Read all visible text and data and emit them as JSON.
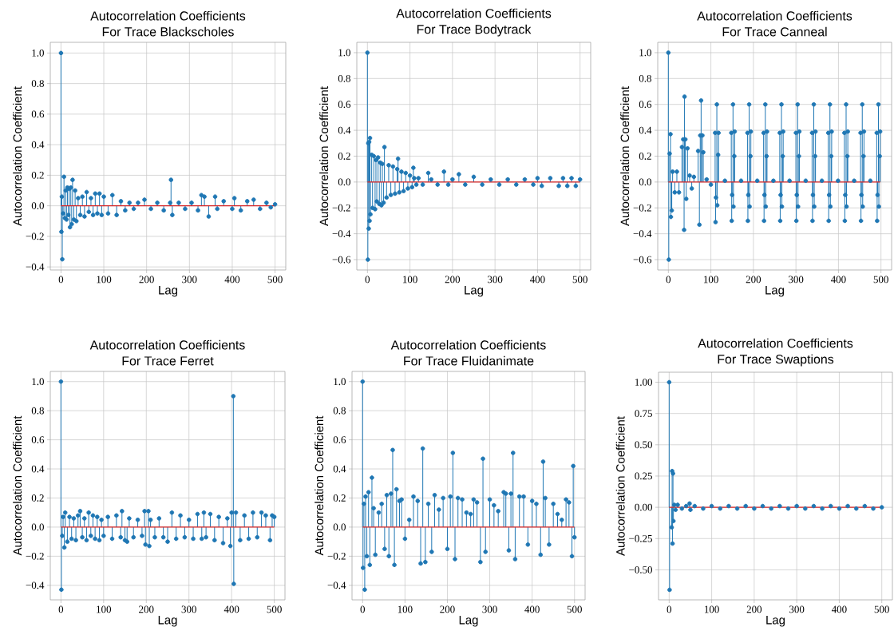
{
  "chart_data": [
    {
      "type": "lollipop",
      "title": "Autocorrelation Coefficients",
      "subtitle": "For Trace Blackscholes",
      "xlabel": "Lag",
      "ylabel": "Autocorrelation Coefficient",
      "color": "#1f77b4",
      "marker": "circle",
      "grid": true,
      "xlim": [
        -25,
        525
      ],
      "ylim": [
        -0.42,
        1.07
      ],
      "xticks": [
        0,
        100,
        200,
        300,
        400,
        500
      ],
      "yticks": [
        {
          "value": -0.4,
          "label": "−0.4"
        },
        {
          "value": -0.2,
          "label": "−0.2"
        },
        {
          "value": 0,
          "label": "0.0"
        },
        {
          "value": 0.2,
          "label": "0.2"
        },
        {
          "value": 0.4,
          "label": "0.4"
        },
        {
          "value": 0.6,
          "label": "0.6"
        },
        {
          "value": 0.8,
          "label": "0.8"
        },
        {
          "value": 1,
          "label": "1.0"
        }
      ],
      "ref_lines": [
        {
          "axis": "y",
          "value": 0,
          "color": "#d62728"
        }
      ],
      "x": [
        0,
        1,
        2,
        3,
        5,
        7,
        9,
        11,
        13,
        15,
        17,
        19,
        21,
        23,
        25,
        27,
        30,
        33,
        36,
        40,
        45,
        50,
        55,
        60,
        65,
        70,
        75,
        80,
        85,
        90,
        95,
        100,
        110,
        120,
        130,
        140,
        150,
        160,
        170,
        180,
        195,
        210,
        225,
        240,
        255,
        257,
        260,
        275,
        290,
        305,
        320,
        328,
        335,
        345,
        360,
        365,
        380,
        400,
        405,
        420,
        435,
        450,
        465,
        480,
        490,
        500
      ],
      "values": [
        1.0,
        -0.17,
        0.06,
        -0.35,
        -0.05,
        0.19,
        -0.08,
        0.1,
        -0.09,
        0.12,
        -0.06,
        0.11,
        -0.14,
        0.12,
        -0.12,
        0.17,
        -0.09,
        0.1,
        -0.1,
        0.05,
        -0.06,
        0.06,
        -0.07,
        0.09,
        -0.04,
        0.05,
        -0.06,
        0.08,
        -0.05,
        0.08,
        -0.06,
        0.06,
        -0.05,
        0.07,
        -0.06,
        0.03,
        -0.03,
        0.02,
        -0.02,
        0.02,
        0.04,
        -0.02,
        0.02,
        -0.03,
        0.02,
        0.17,
        -0.06,
        0.02,
        -0.02,
        0.02,
        -0.03,
        0.07,
        0.06,
        -0.07,
        0.06,
        -0.02,
        0.03,
        -0.02,
        0.05,
        -0.03,
        0.03,
        0.04,
        -0.02,
        0.02,
        -0.01,
        0.01
      ]
    },
    {
      "type": "lollipop",
      "title": "Autocorrelation Coefficients",
      "subtitle": "For Trace Bodytrack",
      "xlabel": "Lag",
      "ylabel": "Autocorrelation Coefficient",
      "color": "#1f77b4",
      "marker": "circle",
      "grid": true,
      "xlim": [
        -25,
        525
      ],
      "ylim": [
        -0.68,
        1.08
      ],
      "xticks": [
        0,
        100,
        200,
        300,
        400,
        500
      ],
      "yticks": [
        {
          "value": -0.6,
          "label": "−0.6"
        },
        {
          "value": -0.4,
          "label": "−0.4"
        },
        {
          "value": -0.2,
          "label": "−0.2"
        },
        {
          "value": 0,
          "label": "0.0"
        },
        {
          "value": 0.2,
          "label": "0.2"
        },
        {
          "value": 0.4,
          "label": "0.4"
        },
        {
          "value": 0.6,
          "label": "0.6"
        },
        {
          "value": 0.8,
          "label": "0.8"
        },
        {
          "value": 1,
          "label": "1.0"
        }
      ],
      "ref_lines": [
        {
          "axis": "y",
          "value": 0,
          "color": "#d62728"
        }
      ],
      "x": [
        0,
        1,
        2,
        3,
        4,
        5,
        6,
        7,
        10,
        12,
        15,
        18,
        20,
        22,
        25,
        28,
        30,
        33,
        35,
        38,
        40,
        45,
        50,
        55,
        60,
        65,
        70,
        72,
        75,
        80,
        85,
        90,
        95,
        100,
        105,
        108,
        110,
        115,
        120,
        130,
        143,
        150,
        165,
        180,
        190,
        200,
        215,
        230,
        250,
        270,
        290,
        310,
        330,
        350,
        370,
        390,
        400,
        410,
        430,
        450,
        460,
        470,
        480,
        490,
        500
      ],
      "values": [
        1.0,
        -0.6,
        0.3,
        -0.36,
        0.31,
        -0.3,
        0.34,
        -0.25,
        0.21,
        -0.2,
        0.2,
        -0.21,
        0.17,
        -0.15,
        0.19,
        -0.17,
        0.15,
        -0.18,
        0.14,
        -0.16,
        0.27,
        -0.12,
        0.13,
        -0.1,
        0.12,
        -0.09,
        0.1,
        0.18,
        -0.08,
        0.08,
        -0.07,
        0.07,
        -0.05,
        0.05,
        -0.04,
        0.11,
        0.03,
        -0.02,
        0.03,
        -0.02,
        0.07,
        0.02,
        -0.02,
        0.08,
        -0.02,
        0.02,
        0.06,
        -0.02,
        0.04,
        -0.02,
        0.02,
        -0.02,
        0.02,
        -0.02,
        0.02,
        -0.02,
        0.03,
        -0.03,
        0.03,
        -0.03,
        0.03,
        -0.03,
        0.03,
        -0.03,
        0.02
      ]
    },
    {
      "type": "lollipop",
      "title": "Autocorrelation Coefficients",
      "subtitle": "For Trace Canneal",
      "xlabel": "Lag",
      "ylabel": "Autocorrelation Coefficient",
      "color": "#1f77b4",
      "marker": "circle",
      "grid": true,
      "xlim": [
        -25,
        525
      ],
      "ylim": [
        -0.68,
        1.08
      ],
      "xticks": [
        0,
        100,
        200,
        300,
        400,
        500
      ],
      "yticks": [
        {
          "value": -0.6,
          "label": "−0.6"
        },
        {
          "value": -0.4,
          "label": "−0.4"
        },
        {
          "value": -0.2,
          "label": "−0.2"
        },
        {
          "value": 0,
          "label": "0.0"
        },
        {
          "value": 0.2,
          "label": "0.2"
        },
        {
          "value": 0.4,
          "label": "0.4"
        },
        {
          "value": 0.6,
          "label": "0.6"
        },
        {
          "value": 0.8,
          "label": "0.8"
        },
        {
          "value": 1,
          "label": "1.0"
        }
      ],
      "ref_lines": [
        {
          "axis": "y",
          "value": 0,
          "color": "#d62728"
        }
      ],
      "x": [
        0,
        1,
        3,
        5,
        6,
        8,
        10,
        15,
        20,
        25,
        32,
        35,
        37,
        38,
        40,
        42,
        45,
        50,
        55,
        60,
        70,
        73,
        75,
        77,
        80,
        82,
        90,
        100,
        110,
        111,
        112,
        114,
        115,
        117,
        118,
        133,
        148,
        149,
        150,
        152,
        153,
        155,
        156,
        171,
        186,
        187,
        188,
        190,
        191,
        193,
        194,
        209,
        224,
        225,
        226,
        228,
        229,
        231,
        232,
        247,
        262,
        263,
        264,
        266,
        267,
        269,
        270,
        285,
        300,
        301,
        302,
        304,
        305,
        307,
        308,
        323,
        338,
        339,
        340,
        342,
        343,
        345,
        346,
        361,
        376,
        377,
        378,
        380,
        381,
        383,
        384,
        399,
        414,
        415,
        416,
        418,
        419,
        421,
        422,
        437,
        452,
        453,
        454,
        456,
        457,
        459,
        460,
        475,
        490,
        491,
        492,
        494,
        495,
        497,
        498
      ],
      "values": [
        1.0,
        -0.6,
        0.22,
        0.37,
        -0.27,
        -0.22,
        0.08,
        -0.08,
        0.08,
        -0.08,
        0.27,
        0.33,
        -0.37,
        0.66,
        0.33,
        -0.13,
        0.26,
        0.05,
        -0.05,
        0.04,
        0.24,
        -0.33,
        0.36,
        0.63,
        0.36,
        0.23,
        0.02,
        -0.02,
        0.38,
        -0.31,
        -0.12,
        0.6,
        -0.18,
        0.21,
        0.38,
        0.01,
        0.38,
        -0.3,
        -0.1,
        0.6,
        -0.19,
        0.2,
        0.39,
        0.01,
        0.38,
        -0.3,
        -0.1,
        0.6,
        -0.19,
        0.2,
        0.39,
        0.01,
        0.38,
        -0.3,
        -0.1,
        0.6,
        -0.19,
        0.2,
        0.39,
        0.01,
        0.38,
        -0.3,
        -0.1,
        0.6,
        -0.19,
        0.2,
        0.39,
        0.01,
        0.38,
        -0.3,
        -0.1,
        0.6,
        -0.19,
        0.2,
        0.39,
        0.01,
        0.38,
        -0.3,
        -0.1,
        0.6,
        -0.19,
        0.2,
        0.39,
        0.01,
        0.38,
        -0.3,
        -0.1,
        0.6,
        -0.19,
        0.2,
        0.39,
        0.01,
        0.38,
        -0.3,
        -0.1,
        0.6,
        -0.19,
        0.2,
        0.39,
        0.01,
        0.38,
        -0.3,
        -0.1,
        0.6,
        -0.19,
        0.2,
        0.39,
        0.01,
        0.38,
        -0.3,
        -0.1,
        0.6,
        -0.19,
        0.2,
        0.39
      ]
    },
    {
      "type": "lollipop",
      "title": "Autocorrelation Coefficients",
      "subtitle": "For Trace Ferret",
      "xlabel": "Lag",
      "ylabel": "Autocorrelation Coefficient",
      "color": "#1f77b4",
      "marker": "circle",
      "grid": true,
      "xlim": [
        -25,
        525
      ],
      "ylim": [
        -0.5,
        1.07
      ],
      "xticks": [
        0,
        100,
        200,
        300,
        400,
        500
      ],
      "yticks": [
        {
          "value": -0.4,
          "label": "−0.4"
        },
        {
          "value": -0.2,
          "label": "−0.2"
        },
        {
          "value": 0,
          "label": "0.0"
        },
        {
          "value": 0.2,
          "label": "0.2"
        },
        {
          "value": 0.4,
          "label": "0.4"
        },
        {
          "value": 0.6,
          "label": "0.6"
        },
        {
          "value": 0.8,
          "label": "0.8"
        },
        {
          "value": 1,
          "label": "1.0"
        }
      ],
      "ref_lines": [
        {
          "axis": "y",
          "value": 0,
          "color": "#d62728"
        }
      ],
      "x": [
        0,
        1,
        3,
        5,
        8,
        10,
        15,
        20,
        25,
        30,
        35,
        40,
        45,
        50,
        55,
        60,
        65,
        70,
        75,
        80,
        85,
        90,
        95,
        100,
        110,
        120,
        130,
        140,
        143,
        150,
        155,
        160,
        170,
        180,
        190,
        196,
        198,
        205,
        207,
        210,
        220,
        230,
        240,
        250,
        260,
        270,
        280,
        290,
        300,
        310,
        320,
        330,
        335,
        340,
        350,
        360,
        370,
        380,
        390,
        397,
        400,
        404,
        405,
        410,
        420,
        430,
        440,
        450,
        460,
        470,
        480,
        490,
        495,
        500
      ],
      "values": [
        1.0,
        -0.43,
        -0.06,
        0.07,
        -0.14,
        0.1,
        -0.1,
        0.07,
        -0.08,
        0.06,
        -0.09,
        0.08,
        0.11,
        -0.07,
        0.06,
        -0.09,
        0.1,
        -0.06,
        0.08,
        -0.08,
        0.07,
        -0.09,
        0.05,
        -0.06,
        0.07,
        -0.08,
        0.08,
        -0.07,
        0.11,
        -0.09,
        -0.1,
        0.06,
        -0.07,
        0.05,
        -0.06,
        0.11,
        -0.12,
        0.11,
        -0.13,
        0.05,
        -0.07,
        0.06,
        -0.07,
        -0.1,
        0.1,
        -0.08,
        0.08,
        -0.07,
        0.05,
        -0.08,
        0.09,
        -0.08,
        0.1,
        -0.07,
        0.09,
        -0.09,
        0.07,
        -0.11,
        0.06,
        -0.13,
        0.1,
        0.9,
        -0.39,
        0.1,
        -0.09,
        0.08,
        -0.08,
        0.1,
        -0.07,
        0.1,
        0.08,
        -0.09,
        0.08,
        0.07
      ]
    },
    {
      "type": "lollipop",
      "title": "Autocorrelation Coefficients",
      "subtitle": "For Trace Fluidanimate",
      "xlabel": "Lag",
      "ylabel": "Autocorrelation Coefficient",
      "color": "#1f77b4",
      "marker": "circle",
      "grid": true,
      "xlim": [
        -25,
        525
      ],
      "ylim": [
        -0.5,
        1.07
      ],
      "xticks": [
        0,
        100,
        200,
        300,
        400,
        500
      ],
      "yticks": [
        {
          "value": -0.4,
          "label": "−0.4"
        },
        {
          "value": -0.2,
          "label": "−0.2"
        },
        {
          "value": 0,
          "label": "0.0"
        },
        {
          "value": 0.2,
          "label": "0.2"
        },
        {
          "value": 0.4,
          "label": "0.4"
        },
        {
          "value": 0.6,
          "label": "0.6"
        },
        {
          "value": 0.8,
          "label": "0.8"
        },
        {
          "value": 1,
          "label": "1.0"
        }
      ],
      "ref_lines": [
        {
          "axis": "y",
          "value": 0,
          "color": "#d62728"
        }
      ],
      "x": [
        0,
        1,
        3,
        5,
        7,
        10,
        14,
        17,
        22,
        26,
        30,
        38,
        45,
        52,
        57,
        62,
        67,
        71,
        75,
        80,
        87,
        92,
        100,
        110,
        120,
        130,
        137,
        142,
        148,
        155,
        163,
        170,
        180,
        190,
        200,
        207,
        213,
        218,
        225,
        235,
        245,
        255,
        262,
        270,
        278,
        284,
        290,
        300,
        310,
        320,
        333,
        338,
        345,
        350,
        355,
        360,
        370,
        380,
        390,
        400,
        410,
        420,
        426,
        431,
        440,
        450,
        460,
        470,
        480,
        487,
        494,
        497,
        500
      ],
      "values": [
        1.0,
        -0.28,
        0.16,
        -0.43,
        0.21,
        -0.2,
        0.24,
        -0.26,
        0.34,
        0.13,
        -0.19,
        0.1,
        0.16,
        -0.15,
        0.22,
        -0.2,
        0.23,
        0.53,
        -0.26,
        0.26,
        0.18,
        0.19,
        -0.08,
        0.05,
        0.21,
        0.18,
        -0.25,
        0.54,
        -0.24,
        0.16,
        -0.17,
        0.22,
        0.12,
        0.2,
        -0.15,
        0.21,
        0.51,
        -0.22,
        0.2,
        0.19,
        0.1,
        0.09,
        0.19,
        0.17,
        -0.24,
        0.47,
        -0.17,
        0.19,
        0.15,
        0.11,
        0.24,
        0.23,
        -0.16,
        0.23,
        0.51,
        -0.22,
        0.21,
        0.21,
        -0.12,
        0.18,
        0.16,
        -0.19,
        0.45,
        0.2,
        -0.12,
        0.16,
        0.09,
        0.05,
        0.19,
        0.17,
        -0.2,
        0.42,
        -0.07
      ]
    },
    {
      "type": "lollipop",
      "title": "Autocorrelation Coefficients",
      "subtitle": "For Trace Swaptions",
      "xlabel": "Lag",
      "ylabel": "Autocorrelation Coefficient",
      "color": "#1f77b4",
      "marker": "circle",
      "grid": true,
      "xlim": [
        -25,
        525
      ],
      "ylim": [
        -0.74,
        1.08
      ],
      "xticks": [
        0,
        100,
        200,
        300,
        400,
        500
      ],
      "yticks": [
        {
          "value": -0.5,
          "label": "−0.50"
        },
        {
          "value": -0.25,
          "label": "−0.25"
        },
        {
          "value": 0,
          "label": "0.00"
        },
        {
          "value": 0.25,
          "label": "0.25"
        },
        {
          "value": 0.5,
          "label": "0.50"
        },
        {
          "value": 0.75,
          "label": "0.75"
        },
        {
          "value": 1,
          "label": "1.00"
        }
      ],
      "ref_lines": [
        {
          "axis": "y",
          "value": 0,
          "color": "#d62728"
        }
      ],
      "x": [
        0,
        1,
        2,
        3,
        4,
        5,
        6,
        7,
        8,
        9,
        10,
        12,
        15,
        20,
        30,
        40,
        48,
        50,
        60,
        80,
        100,
        120,
        140,
        160,
        180,
        200,
        220,
        240,
        260,
        280,
        300,
        320,
        340,
        360,
        380,
        400,
        420,
        440,
        460,
        480,
        500
      ],
      "values": [
        1.0,
        -0.66,
        null,
        null,
        null,
        null,
        -0.16,
        0.29,
        -0.29,
        0.27,
        -0.11,
        0.02,
        -0.02,
        0.02,
        -0.01,
        0.01,
        0.03,
        -0.02,
        0.01,
        -0.01,
        0.01,
        -0.01,
        0.01,
        -0.01,
        0.01,
        -0.01,
        0.01,
        -0.01,
        0.01,
        -0.01,
        0.01,
        -0.01,
        0.01,
        -0.01,
        0.01,
        -0.01,
        0.01,
        -0.01,
        0.01,
        -0.01,
        0.0
      ]
    }
  ]
}
